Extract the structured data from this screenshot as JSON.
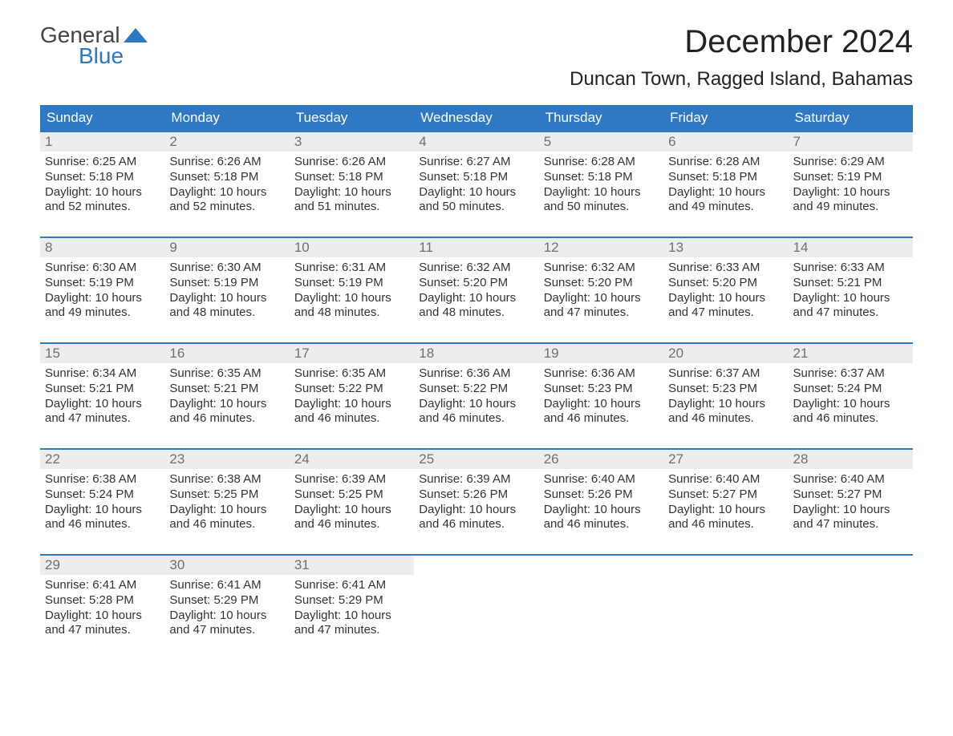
{
  "logo": {
    "line1": "General",
    "line2": "Blue",
    "flag_color": "#2f78c4"
  },
  "title": "December 2024",
  "location": "Duncan Town, Ragged Island, Bahamas",
  "colors": {
    "header_bg": "#2f78c4",
    "header_text": "#ffffff",
    "daynum_bg": "#eceded",
    "daynum_text": "#6f6f6f",
    "body_text": "#333333",
    "border": "#2f78c4"
  },
  "day_labels": [
    "Sunday",
    "Monday",
    "Tuesday",
    "Wednesday",
    "Thursday",
    "Friday",
    "Saturday"
  ],
  "weeks": [
    [
      {
        "n": "1",
        "sunrise": "Sunrise: 6:25 AM",
        "sunset": "Sunset: 5:18 PM",
        "dl1": "Daylight: 10 hours",
        "dl2": "and 52 minutes."
      },
      {
        "n": "2",
        "sunrise": "Sunrise: 6:26 AM",
        "sunset": "Sunset: 5:18 PM",
        "dl1": "Daylight: 10 hours",
        "dl2": "and 52 minutes."
      },
      {
        "n": "3",
        "sunrise": "Sunrise: 6:26 AM",
        "sunset": "Sunset: 5:18 PM",
        "dl1": "Daylight: 10 hours",
        "dl2": "and 51 minutes."
      },
      {
        "n": "4",
        "sunrise": "Sunrise: 6:27 AM",
        "sunset": "Sunset: 5:18 PM",
        "dl1": "Daylight: 10 hours",
        "dl2": "and 50 minutes."
      },
      {
        "n": "5",
        "sunrise": "Sunrise: 6:28 AM",
        "sunset": "Sunset: 5:18 PM",
        "dl1": "Daylight: 10 hours",
        "dl2": "and 50 minutes."
      },
      {
        "n": "6",
        "sunrise": "Sunrise: 6:28 AM",
        "sunset": "Sunset: 5:18 PM",
        "dl1": "Daylight: 10 hours",
        "dl2": "and 49 minutes."
      },
      {
        "n": "7",
        "sunrise": "Sunrise: 6:29 AM",
        "sunset": "Sunset: 5:19 PM",
        "dl1": "Daylight: 10 hours",
        "dl2": "and 49 minutes."
      }
    ],
    [
      {
        "n": "8",
        "sunrise": "Sunrise: 6:30 AM",
        "sunset": "Sunset: 5:19 PM",
        "dl1": "Daylight: 10 hours",
        "dl2": "and 49 minutes."
      },
      {
        "n": "9",
        "sunrise": "Sunrise: 6:30 AM",
        "sunset": "Sunset: 5:19 PM",
        "dl1": "Daylight: 10 hours",
        "dl2": "and 48 minutes."
      },
      {
        "n": "10",
        "sunrise": "Sunrise: 6:31 AM",
        "sunset": "Sunset: 5:19 PM",
        "dl1": "Daylight: 10 hours",
        "dl2": "and 48 minutes."
      },
      {
        "n": "11",
        "sunrise": "Sunrise: 6:32 AM",
        "sunset": "Sunset: 5:20 PM",
        "dl1": "Daylight: 10 hours",
        "dl2": "and 48 minutes."
      },
      {
        "n": "12",
        "sunrise": "Sunrise: 6:32 AM",
        "sunset": "Sunset: 5:20 PM",
        "dl1": "Daylight: 10 hours",
        "dl2": "and 47 minutes."
      },
      {
        "n": "13",
        "sunrise": "Sunrise: 6:33 AM",
        "sunset": "Sunset: 5:20 PM",
        "dl1": "Daylight: 10 hours",
        "dl2": "and 47 minutes."
      },
      {
        "n": "14",
        "sunrise": "Sunrise: 6:33 AM",
        "sunset": "Sunset: 5:21 PM",
        "dl1": "Daylight: 10 hours",
        "dl2": "and 47 minutes."
      }
    ],
    [
      {
        "n": "15",
        "sunrise": "Sunrise: 6:34 AM",
        "sunset": "Sunset: 5:21 PM",
        "dl1": "Daylight: 10 hours",
        "dl2": "and 47 minutes."
      },
      {
        "n": "16",
        "sunrise": "Sunrise: 6:35 AM",
        "sunset": "Sunset: 5:21 PM",
        "dl1": "Daylight: 10 hours",
        "dl2": "and 46 minutes."
      },
      {
        "n": "17",
        "sunrise": "Sunrise: 6:35 AM",
        "sunset": "Sunset: 5:22 PM",
        "dl1": "Daylight: 10 hours",
        "dl2": "and 46 minutes."
      },
      {
        "n": "18",
        "sunrise": "Sunrise: 6:36 AM",
        "sunset": "Sunset: 5:22 PM",
        "dl1": "Daylight: 10 hours",
        "dl2": "and 46 minutes."
      },
      {
        "n": "19",
        "sunrise": "Sunrise: 6:36 AM",
        "sunset": "Sunset: 5:23 PM",
        "dl1": "Daylight: 10 hours",
        "dl2": "and 46 minutes."
      },
      {
        "n": "20",
        "sunrise": "Sunrise: 6:37 AM",
        "sunset": "Sunset: 5:23 PM",
        "dl1": "Daylight: 10 hours",
        "dl2": "and 46 minutes."
      },
      {
        "n": "21",
        "sunrise": "Sunrise: 6:37 AM",
        "sunset": "Sunset: 5:24 PM",
        "dl1": "Daylight: 10 hours",
        "dl2": "and 46 minutes."
      }
    ],
    [
      {
        "n": "22",
        "sunrise": "Sunrise: 6:38 AM",
        "sunset": "Sunset: 5:24 PM",
        "dl1": "Daylight: 10 hours",
        "dl2": "and 46 minutes."
      },
      {
        "n": "23",
        "sunrise": "Sunrise: 6:38 AM",
        "sunset": "Sunset: 5:25 PM",
        "dl1": "Daylight: 10 hours",
        "dl2": "and 46 minutes."
      },
      {
        "n": "24",
        "sunrise": "Sunrise: 6:39 AM",
        "sunset": "Sunset: 5:25 PM",
        "dl1": "Daylight: 10 hours",
        "dl2": "and 46 minutes."
      },
      {
        "n": "25",
        "sunrise": "Sunrise: 6:39 AM",
        "sunset": "Sunset: 5:26 PM",
        "dl1": "Daylight: 10 hours",
        "dl2": "and 46 minutes."
      },
      {
        "n": "26",
        "sunrise": "Sunrise: 6:40 AM",
        "sunset": "Sunset: 5:26 PM",
        "dl1": "Daylight: 10 hours",
        "dl2": "and 46 minutes."
      },
      {
        "n": "27",
        "sunrise": "Sunrise: 6:40 AM",
        "sunset": "Sunset: 5:27 PM",
        "dl1": "Daylight: 10 hours",
        "dl2": "and 46 minutes."
      },
      {
        "n": "28",
        "sunrise": "Sunrise: 6:40 AM",
        "sunset": "Sunset: 5:27 PM",
        "dl1": "Daylight: 10 hours",
        "dl2": "and 47 minutes."
      }
    ],
    [
      {
        "n": "29",
        "sunrise": "Sunrise: 6:41 AM",
        "sunset": "Sunset: 5:28 PM",
        "dl1": "Daylight: 10 hours",
        "dl2": "and 47 minutes."
      },
      {
        "n": "30",
        "sunrise": "Sunrise: 6:41 AM",
        "sunset": "Sunset: 5:29 PM",
        "dl1": "Daylight: 10 hours",
        "dl2": "and 47 minutes."
      },
      {
        "n": "31",
        "sunrise": "Sunrise: 6:41 AM",
        "sunset": "Sunset: 5:29 PM",
        "dl1": "Daylight: 10 hours",
        "dl2": "and 47 minutes."
      },
      {
        "empty": true
      },
      {
        "empty": true
      },
      {
        "empty": true
      },
      {
        "empty": true
      }
    ]
  ]
}
